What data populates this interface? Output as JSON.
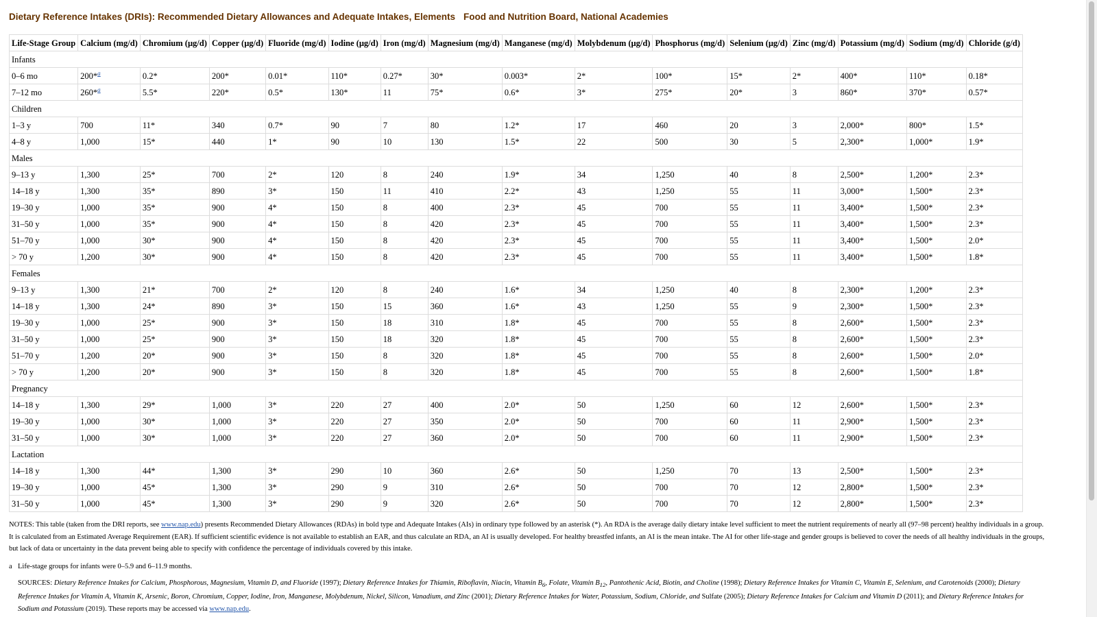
{
  "title": {
    "main": "Dietary Reference Intakes (DRIs): Recommended Dietary Allowances and Adequate Intakes, Elements",
    "source": "Food and Nutrition Board, National Academies"
  },
  "table": {
    "headers": [
      "Life-Stage Group",
      "Calcium (mg/d)",
      "Chromium (μg/d)",
      "Copper (μg/d)",
      "Fluoride (mg/d)",
      "Iodine (μg/d)",
      "Iron (mg/d)",
      "Magnesium (mg/d)",
      "Manganese (mg/d)",
      "Molybdenum (μg/d)",
      "Phosphorus (mg/d)",
      "Selenium (μg/d)",
      "Zinc (mg/d)",
      "Potassium (mg/d)",
      "Sodium (mg/d)",
      "Chloride (g/d)"
    ],
    "groups": [
      {
        "name": "Infants",
        "rows": [
          [
            "0–6 mo",
            "200*",
            "0.2*",
            "200*",
            "0.01*",
            "110*",
            "0.27*",
            "30*",
            "0.003*",
            "2*",
            "100*",
            "15*",
            "2*",
            "400*",
            "110*",
            "0.18*"
          ],
          [
            "7–12 mo",
            "260*",
            "5.5*",
            "220*",
            "0.5*",
            "130*",
            "11",
            "75*",
            "0.6*",
            "3*",
            "275*",
            "20*",
            "3",
            "860*",
            "370*",
            "0.57*"
          ]
        ]
      },
      {
        "name": "Children",
        "rows": [
          [
            "1–3 y",
            "700",
            "11*",
            "340",
            "0.7*",
            "90",
            "7",
            "80",
            "1.2*",
            "17",
            "460",
            "20",
            "3",
            "2,000*",
            "800*",
            "1.5*"
          ],
          [
            "4–8 y",
            "1,000",
            "15*",
            "440",
            "1*",
            "90",
            "10",
            "130",
            "1.5*",
            "22",
            "500",
            "30",
            "5",
            "2,300*",
            "1,000*",
            "1.9*"
          ]
        ]
      },
      {
        "name": "Males",
        "rows": [
          [
            "9–13 y",
            "1,300",
            "25*",
            "700",
            "2*",
            "120",
            "8",
            "240",
            "1.9*",
            "34",
            "1,250",
            "40",
            "8",
            "2,500*",
            "1,200*",
            "2.3*"
          ],
          [
            "14–18 y",
            "1,300",
            "35*",
            "890",
            "3*",
            "150",
            "11",
            "410",
            "2.2*",
            "43",
            "1,250",
            "55",
            "11",
            "3,000*",
            "1,500*",
            "2.3*"
          ],
          [
            "19–30 y",
            "1,000",
            "35*",
            "900",
            "4*",
            "150",
            "8",
            "400",
            "2.3*",
            "45",
            "700",
            "55",
            "11",
            "3,400*",
            "1,500*",
            "2.3*"
          ],
          [
            "31–50 y",
            "1,000",
            "35*",
            "900",
            "4*",
            "150",
            "8",
            "420",
            "2.3*",
            "45",
            "700",
            "55",
            "11",
            "3,400*",
            "1,500*",
            "2.3*"
          ],
          [
            "51–70 y",
            "1,000",
            "30*",
            "900",
            "4*",
            "150",
            "8",
            "420",
            "2.3*",
            "45",
            "700",
            "55",
            "11",
            "3,400*",
            "1,500*",
            "2.0*"
          ],
          [
            "> 70 y",
            "1,200",
            "30*",
            "900",
            "4*",
            "150",
            "8",
            "420",
            "2.3*",
            "45",
            "700",
            "55",
            "11",
            "3,400*",
            "1,500*",
            "1.8*"
          ]
        ]
      },
      {
        "name": "Females",
        "rows": [
          [
            "9–13 y",
            "1,300",
            "21*",
            "700",
            "2*",
            "120",
            "8",
            "240",
            "1.6*",
            "34",
            "1,250",
            "40",
            "8",
            "2,300*",
            "1,200*",
            "2.3*"
          ],
          [
            "14–18 y",
            "1,300",
            "24*",
            "890",
            "3*",
            "150",
            "15",
            "360",
            "1.6*",
            "43",
            "1,250",
            "55",
            "9",
            "2,300*",
            "1,500*",
            "2.3*"
          ],
          [
            "19–30 y",
            "1,000",
            "25*",
            "900",
            "3*",
            "150",
            "18",
            "310",
            "1.8*",
            "45",
            "700",
            "55",
            "8",
            "2,600*",
            "1,500*",
            "2.3*"
          ],
          [
            "31–50 y",
            "1,000",
            "25*",
            "900",
            "3*",
            "150",
            "18",
            "320",
            "1.8*",
            "45",
            "700",
            "55",
            "8",
            "2,600*",
            "1,500*",
            "2.3*"
          ],
          [
            "51–70 y",
            "1,200",
            "20*",
            "900",
            "3*",
            "150",
            "8",
            "320",
            "1.8*",
            "45",
            "700",
            "55",
            "8",
            "2,600*",
            "1,500*",
            "2.0*"
          ],
          [
            "> 70 y",
            "1,200",
            "20*",
            "900",
            "3*",
            "150",
            "8",
            "320",
            "1.8*",
            "45",
            "700",
            "55",
            "8",
            "2,600*",
            "1,500*",
            "1.8*"
          ]
        ]
      },
      {
        "name": "Pregnancy",
        "rows": [
          [
            "14–18 y",
            "1,300",
            "29*",
            "1,000",
            "3*",
            "220",
            "27",
            "400",
            "2.0*",
            "50",
            "1,250",
            "60",
            "12",
            "2,600*",
            "1,500*",
            "2.3*"
          ],
          [
            "19–30 y",
            "1,000",
            "30*",
            "1,000",
            "3*",
            "220",
            "27",
            "350",
            "2.0*",
            "50",
            "700",
            "60",
            "11",
            "2,900*",
            "1,500*",
            "2.3*"
          ],
          [
            "31–50 y",
            "1,000",
            "30*",
            "1,000",
            "3*",
            "220",
            "27",
            "360",
            "2.0*",
            "50",
            "700",
            "60",
            "11",
            "2,900*",
            "1,500*",
            "2.3*"
          ]
        ]
      },
      {
        "name": "Lactation",
        "rows": [
          [
            "14–18 y",
            "1,300",
            "44*",
            "1,300",
            "3*",
            "290",
            "10",
            "360",
            "2.6*",
            "50",
            "1,250",
            "70",
            "13",
            "2,500*",
            "1,500*",
            "2.3*"
          ],
          [
            "19–30 y",
            "1,000",
            "45*",
            "1,300",
            "3*",
            "290",
            "9",
            "310",
            "2.6*",
            "50",
            "700",
            "70",
            "12",
            "2,800*",
            "1,500*",
            "2.3*"
          ],
          [
            "31–50 y",
            "1,000",
            "45*",
            "1,300",
            "3*",
            "290",
            "9",
            "320",
            "2.6*",
            "50",
            "700",
            "70",
            "12",
            "2,800*",
            "1,500*",
            "2.3*"
          ]
        ]
      }
    ],
    "infant_footnote_marker": "a"
  },
  "notes": {
    "before_link": "NOTES: This table (taken from the DRI reports, see ",
    "link": "www.nap.edu",
    "after_link": ") presents Recommended Dietary Allowances (RDAs) in bold type and Adequate Intakes (AIs) in ordinary type followed by an asterisk (*). An RDA is the average daily dietary intake level sufficient to meet the nutrient requirements of nearly all (97–98 percent) healthy individuals in a group. It is calculated from an Estimated Average Requirement (EAR). If sufficient scientific evidence is not available to establish an EAR, and thus calculate an RDA, an AI is usually developed. For healthy breastfed infants, an AI is the mean intake. The AI for other life-stage and gender groups is believed to cover the needs of all healthy individuals in the groups, but lack of data or uncertainty in the data prevent being able to specify with confidence the percentage of individuals covered by this intake."
  },
  "footnote": {
    "marker": "a",
    "text": "Life-stage groups for infants were 0–5.9 and 6–11.9 months."
  },
  "sources": {
    "label": "SOURCES: ",
    "r1": "Dietary Reference Intakes for Calcium, Phosphorous, Magnesium, Vitamin D, and Fluoride",
    "y1": " (1997); ",
    "r2a": "Dietary Reference Intakes for Thiamin, Riboflavin, Niacin, Vitamin B",
    "r2sub1": "6",
    "r2b": ", Folate, Vitamin B",
    "r2sub2": "12",
    "r2c": ", Pantothenic Acid, Biotin, and Choline",
    "y2": " (1998); ",
    "r3": "Dietary Reference Intakes for Vitamin C, Vitamin E, Selenium, and Carotenoids",
    "y3": " (2000); ",
    "r4": "Dietary Reference Intakes for Vitamin A, Vitamin K, Arsenic, Boron, Chromium, Copper, Iodine, Iron, Manganese, Molybdenum, Nickel, Silicon, Vanadium, and Zinc",
    "y4": " (2001); ",
    "r5": "Dietary Reference Intakes for Water, Potassium, Sodium, Chloride, and",
    "y5": " Sulfate (2005); ",
    "r6": "Dietary Reference Intakes for Calcium and Vitamin D",
    "y6": " (2011); and ",
    "r7": "Dietary Reference Intakes for Sodium and Potassium",
    "y7": " (2019). These reports may be accessed via ",
    "link": "www.nap.edu",
    "end": "."
  }
}
